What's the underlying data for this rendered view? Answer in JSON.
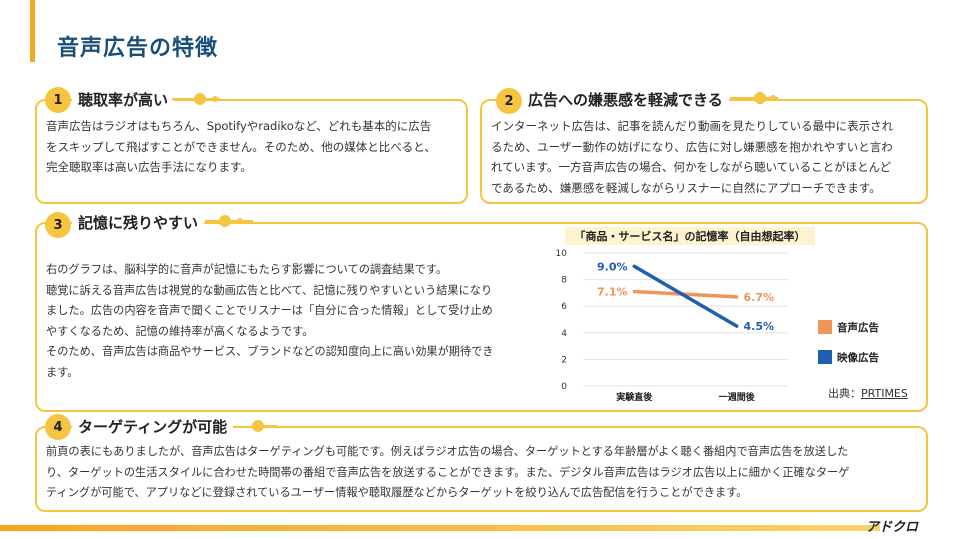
{
  "page": {
    "title": "音声広告の特徴"
  },
  "sections": [
    {
      "number": "1",
      "heading": "聴取率が高い",
      "lines": [
        "音声広告はラジオはもちろん、Spotifyやradikoなど、どれも基本的に広告",
        "をスキップして飛ばすことができません。そのため、他の媒体と比べると、",
        "完全聴取率は高い広告手法になります。"
      ]
    },
    {
      "number": "2",
      "heading": "広告への嫌悪感を軽減できる",
      "lines": [
        "インターネット広告は、記事を読んだり動画を見たりしている最中に表示され",
        "るため、ユーザー動作の妨げになり、広告に対し嫌悪感を抱かれやすいと言わ",
        "れています。一方音声広告の場合、何かをしながら聴いていることがほとんど",
        "であるため、嫌悪感を軽減しながらリスナーに自然にアプローチできます。"
      ]
    },
    {
      "number": "3",
      "heading": "記憶に残りやすい",
      "lines": [
        "右のグラフは、脳科学的に音声が記憶にもたらす影響についての調査結果です。",
        "聴覚に訴える音声広告は視覚的な動画広告と比べて、記憶に残りやすいという結果になり",
        "ました。広告の内容を音声で聞くことでリスナーは「自分に合った情報」として受け止め",
        "やすくなるため、記憶の維持率が高くなるようです。",
        "そのため、音声広告は商品やサービス、ブランドなどの認知度向上に高い効果が期待でき",
        "ます。"
      ]
    },
    {
      "number": "4",
      "heading": "ターゲティングが可能",
      "lines": [
        "前頁の表にもありましたが、音声広告はターゲティングも可能です。例えばラジオ広告の場合、ターゲットとする年齢層がよく聴く番組内で音声広告を放送した",
        "り、ターゲットの生活スタイルに合わせた時間帯の番組で音声広告を放送することができます。また、デジタル音声広告はラジオ広告以上に細かく正確なターゲ",
        "ティングが可能で、アプリなどに登録されているユーザー情報や聴取履歴などからターゲットを絞り込んで広告配信を行うことができます。"
      ]
    }
  ],
  "chart_data": {
    "type": "line",
    "title": "「商品・サービス名」の記憶率（自由想起率）",
    "categories": [
      "実験直後",
      "一週間後"
    ],
    "y_ticks": [
      "0",
      "2",
      "4",
      "6",
      "8",
      "10"
    ],
    "ylim": [
      0,
      10
    ],
    "grid": true,
    "legend_position": "right",
    "series": [
      {
        "name": "音声広告",
        "values": [
          7.1,
          6.7
        ],
        "labels": [
          "7.1%",
          "6.7%"
        ],
        "color": "#f0955a"
      },
      {
        "name": "映像広告",
        "values": [
          9.0,
          4.5
        ],
        "labels": [
          "9.0%",
          "4.5%"
        ],
        "color": "#1f5fad"
      }
    ]
  },
  "source": {
    "label": "出典：",
    "link": "PRTIMES"
  },
  "logo": {
    "text": "アドクロ"
  },
  "colors": {
    "accent": "#f5c542",
    "title": "#1a4f7a",
    "bar": "#f5a623"
  }
}
